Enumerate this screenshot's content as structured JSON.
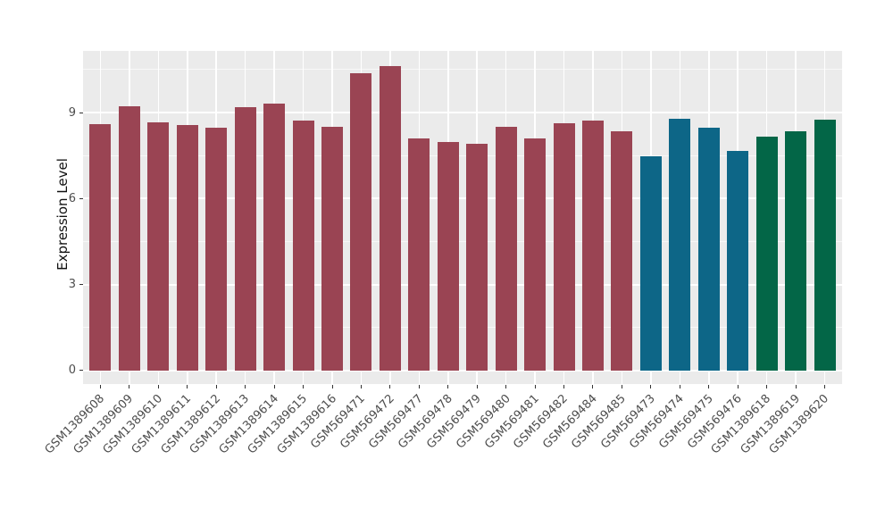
{
  "figure": {
    "background": "#FFFFFF",
    "panel_background": "#EBEBEB",
    "gridline_color": "#FFFFFF",
    "axis_text_color": "#4D4D4D"
  },
  "chart_data": {
    "type": "bar",
    "title": "",
    "xlabel": "",
    "ylabel": "Expression Level",
    "categories": [
      "GSM1389608",
      "GSM1389609",
      "GSM1389610",
      "GSM1389611",
      "GSM1389612",
      "GSM1389613",
      "GSM1389614",
      "GSM1389615",
      "GSM1389616",
      "GSM569471",
      "GSM569472",
      "GSM569477",
      "GSM569478",
      "GSM569479",
      "GSM569480",
      "GSM569481",
      "GSM569482",
      "GSM569484",
      "GSM569485",
      "GSM569473",
      "GSM569474",
      "GSM569475",
      "GSM569476",
      "GSM1389618",
      "GSM1389619",
      "GSM1389620"
    ],
    "values": [
      8.59,
      9.22,
      8.67,
      8.57,
      8.47,
      9.19,
      9.32,
      8.72,
      8.51,
      10.36,
      10.62,
      8.1,
      7.98,
      7.91,
      8.51,
      8.1,
      8.62,
      8.73,
      8.36,
      7.47,
      8.79,
      8.48,
      7.65,
      8.15,
      8.35,
      8.75
    ],
    "groups": [
      "maroon",
      "maroon",
      "maroon",
      "maroon",
      "maroon",
      "maroon",
      "maroon",
      "maroon",
      "maroon",
      "maroon",
      "maroon",
      "maroon",
      "maroon",
      "maroon",
      "maroon",
      "maroon",
      "maroon",
      "maroon",
      "maroon",
      "teal",
      "teal",
      "teal",
      "teal",
      "green",
      "green",
      "green"
    ],
    "palette": {
      "maroon": "#9A4453",
      "teal": "#0D6687",
      "green": "#036647"
    },
    "yticks": [
      0,
      3,
      6,
      9
    ],
    "ytick_labels": [
      "0",
      "3",
      "6",
      "9"
    ],
    "minor_gridlines": [
      1.5,
      4.5,
      7.5,
      10.5
    ],
    "ylim": [
      -0.47,
      11.15
    ],
    "grid": "on",
    "legend": "none",
    "x_label_rotation": -45
  }
}
